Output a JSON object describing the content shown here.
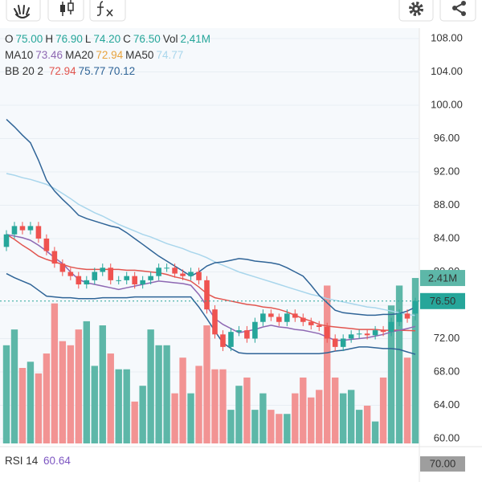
{
  "chart_data": {
    "type": "candlestick",
    "ylim": [
      59.42,
      109.25
    ],
    "yticks": [
      {
        "value": 60,
        "label": "60.00"
      },
      {
        "value": 64,
        "label": "64.00"
      },
      {
        "value": 68,
        "label": "68.00"
      },
      {
        "value": 72,
        "label": "72.00"
      },
      {
        "value": 76,
        "label": "76.00"
      },
      {
        "value": 80,
        "label": "80.00"
      },
      {
        "value": 84,
        "label": "84.00"
      },
      {
        "value": 88,
        "label": "88.00"
      },
      {
        "value": 92,
        "label": "92.00"
      },
      {
        "value": 96,
        "label": "96.00"
      },
      {
        "value": 100,
        "label": "100.00"
      },
      {
        "value": 104,
        "label": "104.00"
      },
      {
        "value": 108,
        "label": "108.00"
      }
    ],
    "grid": true,
    "up_color": "#26a69a",
    "down_color": "#ef5350",
    "open": [
      83,
      84.5,
      85.5,
      85,
      85.5,
      84,
      82.5,
      81,
      80,
      79.5,
      78.5,
      79,
      80,
      80.5,
      79,
      79,
      79.5,
      78.5,
      79,
      79.5,
      80.5,
      80.5,
      79.8,
      79.5,
      80,
      79,
      75.5,
      72.5,
      71,
      72.8,
      73,
      72,
      74,
      75,
      74.6,
      74,
      75,
      74.5,
      74,
      73.6,
      73.4,
      72,
      71,
      72,
      72.5,
      72.6,
      72.4,
      73,
      72.8,
      74,
      75,
      75
    ],
    "high": [
      85,
      86,
      86,
      86,
      86,
      84.5,
      83,
      81.5,
      80.5,
      80,
      79.5,
      80.5,
      81,
      81,
      79.5,
      80,
      80,
      79.5,
      80,
      81,
      81,
      81,
      80.3,
      80.5,
      80.5,
      79.5,
      76,
      73,
      73.3,
      73.5,
      73.5,
      74.5,
      75.5,
      75.5,
      75,
      75.5,
      75.5,
      75,
      74.5,
      74.1,
      73.9,
      72.5,
      72.5,
      73,
      73.1,
      73.1,
      73.5,
      73.5,
      74.5,
      75.5,
      75.5,
      76.9
    ],
    "low": [
      82.5,
      84,
      84.5,
      84.5,
      83.5,
      82,
      80.5,
      79.5,
      79,
      78,
      78,
      78.5,
      79.5,
      78.5,
      78.5,
      78.5,
      78,
      78,
      78.5,
      79,
      80,
      79.3,
      79,
      79,
      78.5,
      75,
      72,
      70.5,
      70.5,
      72.3,
      71.5,
      71.5,
      73.5,
      74.1,
      73.5,
      73.5,
      74,
      73.5,
      73.1,
      72.9,
      71.5,
      70.5,
      70.5,
      71.5,
      72,
      71.9,
      71.9,
      72.3,
      72.3,
      73.5,
      73.9,
      74.2
    ],
    "close": [
      84.5,
      85.5,
      85,
      85.5,
      84,
      82.5,
      81,
      80,
      79.5,
      78.5,
      79,
      80,
      80.5,
      79,
      79,
      79.5,
      78.5,
      79,
      79.5,
      80.5,
      80.5,
      79.8,
      79.5,
      80,
      79,
      75.5,
      72.5,
      71,
      72.8,
      73,
      72,
      74,
      75,
      74.6,
      74,
      75,
      74.5,
      74,
      73.6,
      73.4,
      72,
      71,
      72,
      72.5,
      72.6,
      72.4,
      73,
      72.8,
      74,
      75,
      74.4,
      76.5
    ],
    "volume": {
      "axis": "y2",
      "up_color": "#5db7a8",
      "down_color": "#f29393",
      "values": [
        1.43,
        1.66,
        1.1,
        1.19,
        1.02,
        1.31,
        2.04,
        1.49,
        1.43,
        1.66,
        1.78,
        1.13,
        1.72,
        1.31,
        1.08,
        1.08,
        0.61,
        0.84,
        1.66,
        1.43,
        1.43,
        0.73,
        1.25,
        0.73,
        1.13,
        1.72,
        1.08,
        1.08,
        0.49,
        0.84,
        0.96,
        0.49,
        0.73,
        0.49,
        0.43,
        0.43,
        0.73,
        0.96,
        0.67,
        0.78,
        2.3,
        0.96,
        0.73,
        0.78,
        0.49,
        0.55,
        0.32,
        0.96,
        2.01,
        2.3,
        1.25,
        2.41
      ],
      "last_label": "2.41M"
    },
    "y2lim": [
      0,
      6.05
    ],
    "price_label": "76.50",
    "price_line_value": 76.5,
    "series": [
      {
        "name": "MA50",
        "color": "#a9d6ec",
        "values": [
          91.8,
          91.6,
          91.3,
          91.1,
          90.8,
          90.5,
          90,
          89.4,
          88.8,
          88.1,
          87.6,
          87.1,
          86.7,
          86.2,
          85.7,
          85.3,
          84.9,
          84.5,
          84.2,
          83.8,
          83.4,
          83.1,
          82.8,
          82.4,
          82.1,
          81.7,
          81.2,
          80.8,
          80.4,
          80,
          79.7,
          79.4,
          79.1,
          78.8,
          78.5,
          78.2,
          77.9,
          77.6,
          77.3,
          77.1,
          76.8,
          76.6,
          76.4,
          76.2,
          76,
          75.8,
          75.7,
          75.5,
          75.3,
          75.1,
          74.9,
          74.77
        ]
      },
      {
        "name": "BB upper",
        "color": "#2f6497",
        "values": [
          98.3,
          97.4,
          96.4,
          95.5,
          93.4,
          91,
          89.7,
          88.7,
          87.8,
          86.8,
          86.4,
          86.1,
          85.8,
          85.5,
          85.3,
          84.7,
          84,
          83.3,
          82.6,
          81.9,
          81.3,
          80.7,
          80.1,
          79.5,
          80,
          80.7,
          81.1,
          81.2,
          81.4,
          81.6,
          81.5,
          81.3,
          81.2,
          81.1,
          80.9,
          80.5,
          80,
          79.5,
          78.4,
          77.2,
          76.3,
          75.4,
          75.1,
          75,
          74.9,
          74.8,
          74.8,
          74.9,
          74.9,
          75,
          75.3,
          75.77
        ]
      },
      {
        "name": "BB lower",
        "color": "#2f6497",
        "values": [
          79.8,
          79.3,
          78.9,
          78.5,
          77.8,
          77.1,
          77,
          76.9,
          76.9,
          76.8,
          76.8,
          76.8,
          76.9,
          76.9,
          76.9,
          76.9,
          77,
          77,
          77,
          77,
          77,
          77,
          77,
          77,
          75.8,
          74.4,
          72.9,
          71.5,
          70.8,
          70.3,
          70.2,
          70.2,
          70.2,
          70.2,
          70.2,
          70.2,
          70.2,
          70.2,
          70.2,
          70.2,
          70.3,
          70.5,
          70.6,
          70.8,
          71,
          71,
          70.9,
          70.8,
          70.8,
          70.7,
          70.4,
          70.12
        ]
      },
      {
        "name": "BB middle",
        "color": "#e2554f",
        "values": [
          84.5,
          83.9,
          83.2,
          82.6,
          81.9,
          81.5,
          81.2,
          80.9,
          80.6,
          80.4,
          80.3,
          80.3,
          80.3,
          80.3,
          80.3,
          80.2,
          80.2,
          80.1,
          80,
          79.9,
          79.7,
          79.4,
          79.2,
          78.9,
          78.2,
          77.4,
          76.9,
          76.7,
          76.5,
          76.3,
          76.1,
          76,
          75.8,
          75.7,
          75.5,
          75.2,
          74.8,
          74.4,
          74.1,
          73.7,
          73.5,
          73.4,
          73.3,
          73.2,
          73.1,
          73.1,
          73.1,
          73,
          73,
          73,
          72.97,
          72.94
        ]
      },
      {
        "name": "MA10",
        "color": "#8e68b3",
        "values": [
          84.5,
          84.3,
          84.1,
          83.8,
          83.2,
          82.5,
          81.7,
          81,
          80,
          79.1,
          78.7,
          78.5,
          78.3,
          78.1,
          77.9,
          78.1,
          78.3,
          78.5,
          78.7,
          78.9,
          78.8,
          78.7,
          78.6,
          78.4,
          77.3,
          75.9,
          74.4,
          73.7,
          73.2,
          72.7,
          72.9,
          73.1,
          73.4,
          73.6,
          73.4,
          73.3,
          73.1,
          73,
          72.8,
          72.6,
          72.2,
          71.8,
          71.8,
          71.9,
          72,
          72.1,
          72.3,
          72.5,
          72.8,
          73,
          73.2,
          73.46
        ]
      }
    ],
    "legend": {
      "row1": [
        {
          "key": "O",
          "value": "75.00"
        },
        {
          "key": "H",
          "value": "76.90"
        },
        {
          "key": "L",
          "value": "74.20"
        },
        {
          "key": "C",
          "value": "76.50"
        },
        {
          "key": "Vol",
          "value": "2,41M"
        }
      ],
      "row2": [
        {
          "key": "MA10",
          "value": "73.46"
        },
        {
          "key": "MA20",
          "value": "72.94"
        },
        {
          "key": "MA50",
          "value": "74.77"
        }
      ],
      "row3_key": "BB 20 2",
      "row3_values": [
        "72.94",
        "75.77",
        "70.12"
      ]
    },
    "rsi": {
      "label": "RSI 14",
      "value": "60.64",
      "level_label": "70.00"
    }
  }
}
